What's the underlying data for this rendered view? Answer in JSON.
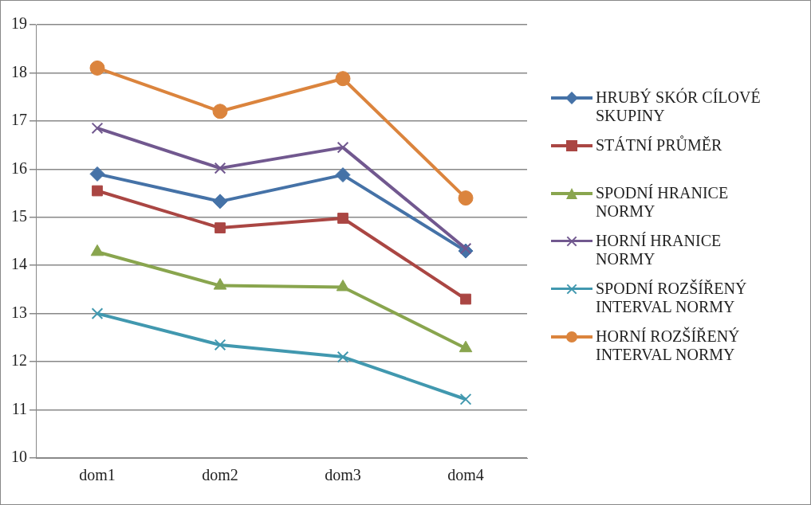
{
  "chart_data": {
    "type": "line",
    "categories": [
      "dom1",
      "dom2",
      "dom3",
      "dom4"
    ],
    "series": [
      {
        "name": "HRUBÝ SKÓR CÍLOVÉ SKUPINY",
        "color": "#4572a7",
        "marker": "diamond",
        "values": [
          15.9,
          15.33,
          15.88,
          14.3
        ]
      },
      {
        "name": "STÁTNÍ PRŮMĚR",
        "color": "#aa4643",
        "marker": "square",
        "values": [
          15.55,
          14.78,
          14.98,
          13.3
        ]
      },
      {
        "name": "SPODNÍ HRANICE NORMY",
        "color": "#89a54e",
        "marker": "triangle",
        "values": [
          14.28,
          13.58,
          13.55,
          12.28
        ]
      },
      {
        "name": "HORNÍ HRANICE NORMY",
        "color": "#71588f",
        "marker": "cross",
        "values": [
          16.85,
          16.02,
          16.45,
          14.35
        ]
      },
      {
        "name": "SPODNÍ ROZŠÍŘENÝ INTERVAL NORMY",
        "color": "#4198af",
        "marker": "cross",
        "values": [
          13.0,
          12.35,
          12.1,
          11.22
        ]
      },
      {
        "name": "HORNÍ ROZŠÍŘENÝ INTERVAL NORMY",
        "color": "#db843d",
        "marker": "circle",
        "values": [
          18.1,
          17.2,
          17.88,
          15.4
        ]
      }
    ],
    "ylim": [
      10,
      19
    ],
    "yticks": [
      10,
      11,
      12,
      13,
      14,
      15,
      16,
      17,
      18,
      19
    ],
    "grid": "y",
    "legend": "right"
  }
}
